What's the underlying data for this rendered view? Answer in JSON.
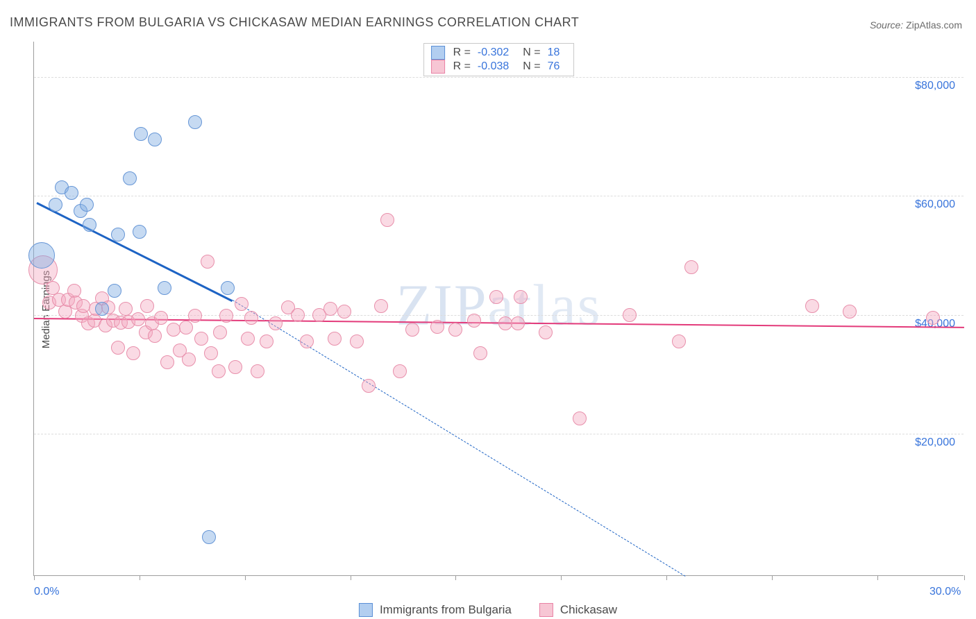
{
  "title": "IMMIGRANTS FROM BULGARIA VS CHICKASAW MEDIAN EARNINGS CORRELATION CHART",
  "source_prefix": "Source: ",
  "source_name": "ZipAtlas.com",
  "watermark": "ZIPatlas",
  "ylabel": "Median Earnings",
  "chart": {
    "type": "scatter",
    "background_color": "#ffffff",
    "grid_color": "#dcdcdc",
    "axis_color": "#9d9d9d",
    "label_color": "#3874db",
    "text_color": "#4a4a4a",
    "xlim": [
      0,
      30
    ],
    "ylim": [
      -4000,
      86000
    ],
    "x_ticks": [
      0,
      3.4,
      6.8,
      10.2,
      13.6,
      17.0,
      20.4,
      23.8,
      27.2,
      30.0
    ],
    "x_tick_labels_shown": {
      "0": "0.0%",
      "30": "30.0%"
    },
    "y_gridlines": [
      20000,
      40000,
      60000,
      80000
    ],
    "y_labels": {
      "20000": "$20,000",
      "40000": "$40,000",
      "60000": "$60,000",
      "80000": "$80,000"
    },
    "series": [
      {
        "name": "Immigrants from Bulgaria",
        "fill": "rgba(128, 172, 226, 0.45)",
        "stroke": "#6696d6",
        "swatch_fill": "#b2cef0",
        "swatch_stroke": "#5a8fd6",
        "R": "-0.302",
        "N": "18",
        "trend": {
          "color": "#1d63c4",
          "width": 3,
          "x1": 0.1,
          "y1": 59000,
          "x2": 6.4,
          "y2": 42500,
          "dash_to_x": 21.0,
          "dash_to_y": -4000
        },
        "points": [
          {
            "x": 0.25,
            "y": 50000,
            "r": 18
          },
          {
            "x": 0.7,
            "y": 58500,
            "r": 9
          },
          {
            "x": 0.9,
            "y": 61500,
            "r": 9
          },
          {
            "x": 1.2,
            "y": 60500,
            "r": 9
          },
          {
            "x": 1.5,
            "y": 57500,
            "r": 9
          },
          {
            "x": 1.7,
            "y": 58500,
            "r": 9
          },
          {
            "x": 1.8,
            "y": 55200,
            "r": 9
          },
          {
            "x": 2.2,
            "y": 41000,
            "r": 9
          },
          {
            "x": 2.6,
            "y": 44000,
            "r": 9
          },
          {
            "x": 2.7,
            "y": 53500,
            "r": 9
          },
          {
            "x": 3.1,
            "y": 63000,
            "r": 9
          },
          {
            "x": 3.4,
            "y": 54000,
            "r": 9
          },
          {
            "x": 3.45,
            "y": 70500,
            "r": 9
          },
          {
            "x": 3.9,
            "y": 69500,
            "r": 9
          },
          {
            "x": 4.2,
            "y": 44500,
            "r": 9
          },
          {
            "x": 5.2,
            "y": 72500,
            "r": 9
          },
          {
            "x": 5.65,
            "y": 2500,
            "r": 9
          },
          {
            "x": 6.25,
            "y": 44500,
            "r": 9
          }
        ]
      },
      {
        "name": "Chickasaw",
        "fill": "rgba(244, 166, 191, 0.42)",
        "stroke": "#e88fab",
        "swatch_fill": "#f7c6d4",
        "swatch_stroke": "#e982a5",
        "R": "-0.038",
        "N": "76",
        "trend": {
          "color": "#e33a7a",
          "width": 2.5,
          "x1": 0.0,
          "y1": 39500,
          "x2": 30.0,
          "y2": 38000
        },
        "points": [
          {
            "x": 0.3,
            "y": 47500,
            "r": 20
          },
          {
            "x": 0.5,
            "y": 42000,
            "r": 9
          },
          {
            "x": 0.6,
            "y": 44500,
            "r": 9
          },
          {
            "x": 0.8,
            "y": 42500,
            "r": 9
          },
          {
            "x": 1.0,
            "y": 40500,
            "r": 9
          },
          {
            "x": 1.1,
            "y": 42500,
            "r": 9
          },
          {
            "x": 1.3,
            "y": 44000,
            "r": 9
          },
          {
            "x": 1.35,
            "y": 42000,
            "r": 9
          },
          {
            "x": 1.55,
            "y": 39800,
            "r": 9
          },
          {
            "x": 1.6,
            "y": 41500,
            "r": 9
          },
          {
            "x": 1.75,
            "y": 38500,
            "r": 9
          },
          {
            "x": 1.95,
            "y": 39000,
            "r": 9
          },
          {
            "x": 2.0,
            "y": 41000,
            "r": 9
          },
          {
            "x": 2.2,
            "y": 42800,
            "r": 9
          },
          {
            "x": 2.3,
            "y": 38200,
            "r": 9
          },
          {
            "x": 2.4,
            "y": 41200,
            "r": 9
          },
          {
            "x": 2.55,
            "y": 39000,
            "r": 9
          },
          {
            "x": 2.7,
            "y": 34500,
            "r": 9
          },
          {
            "x": 2.8,
            "y": 38700,
            "r": 9
          },
          {
            "x": 2.95,
            "y": 41000,
            "r": 9
          },
          {
            "x": 3.05,
            "y": 38800,
            "r": 9
          },
          {
            "x": 3.2,
            "y": 33500,
            "r": 9
          },
          {
            "x": 3.35,
            "y": 39200,
            "r": 9
          },
          {
            "x": 3.6,
            "y": 37000,
            "r": 9
          },
          {
            "x": 3.65,
            "y": 41500,
            "r": 9
          },
          {
            "x": 3.8,
            "y": 38500,
            "r": 9
          },
          {
            "x": 3.9,
            "y": 36500,
            "r": 9
          },
          {
            "x": 4.1,
            "y": 39500,
            "r": 9
          },
          {
            "x": 4.3,
            "y": 32000,
            "r": 9
          },
          {
            "x": 4.5,
            "y": 37500,
            "r": 9
          },
          {
            "x": 4.7,
            "y": 34000,
            "r": 9
          },
          {
            "x": 4.9,
            "y": 37800,
            "r": 9
          },
          {
            "x": 5.0,
            "y": 32500,
            "r": 9
          },
          {
            "x": 5.2,
            "y": 39800,
            "r": 9
          },
          {
            "x": 5.4,
            "y": 36000,
            "r": 9
          },
          {
            "x": 5.6,
            "y": 49000,
            "r": 9
          },
          {
            "x": 5.7,
            "y": 33500,
            "r": 9
          },
          {
            "x": 5.95,
            "y": 30500,
            "r": 9
          },
          {
            "x": 6.0,
            "y": 37000,
            "r": 9
          },
          {
            "x": 6.2,
            "y": 39800,
            "r": 9
          },
          {
            "x": 6.5,
            "y": 31200,
            "r": 9
          },
          {
            "x": 6.7,
            "y": 41800,
            "r": 9
          },
          {
            "x": 6.9,
            "y": 36000,
            "r": 9
          },
          {
            "x": 7.0,
            "y": 39500,
            "r": 9
          },
          {
            "x": 7.2,
            "y": 30500,
            "r": 9
          },
          {
            "x": 7.5,
            "y": 35500,
            "r": 9
          },
          {
            "x": 7.8,
            "y": 38500,
            "r": 9
          },
          {
            "x": 8.2,
            "y": 41200,
            "r": 9
          },
          {
            "x": 8.5,
            "y": 40000,
            "r": 9
          },
          {
            "x": 8.8,
            "y": 35500,
            "r": 9
          },
          {
            "x": 9.2,
            "y": 40000,
            "r": 9
          },
          {
            "x": 9.55,
            "y": 41000,
            "r": 9
          },
          {
            "x": 9.7,
            "y": 36000,
            "r": 9
          },
          {
            "x": 10.0,
            "y": 40500,
            "r": 9
          },
          {
            "x": 10.4,
            "y": 35500,
            "r": 9
          },
          {
            "x": 10.8,
            "y": 28000,
            "r": 9
          },
          {
            "x": 11.2,
            "y": 41500,
            "r": 9
          },
          {
            "x": 11.4,
            "y": 56000,
            "r": 9
          },
          {
            "x": 11.8,
            "y": 30500,
            "r": 9
          },
          {
            "x": 12.2,
            "y": 37500,
            "r": 9
          },
          {
            "x": 13.0,
            "y": 38000,
            "r": 9
          },
          {
            "x": 13.6,
            "y": 37500,
            "r": 9
          },
          {
            "x": 14.2,
            "y": 39000,
            "r": 9
          },
          {
            "x": 14.4,
            "y": 33500,
            "r": 9
          },
          {
            "x": 14.9,
            "y": 43000,
            "r": 9
          },
          {
            "x": 15.2,
            "y": 38500,
            "r": 9
          },
          {
            "x": 15.6,
            "y": 38500,
            "r": 9
          },
          {
            "x": 15.7,
            "y": 43000,
            "r": 9
          },
          {
            "x": 16.5,
            "y": 37000,
            "r": 9
          },
          {
            "x": 17.6,
            "y": 22500,
            "r": 9
          },
          {
            "x": 19.2,
            "y": 40000,
            "r": 9
          },
          {
            "x": 20.8,
            "y": 35500,
            "r": 9
          },
          {
            "x": 21.2,
            "y": 48000,
            "r": 9
          },
          {
            "x": 25.1,
            "y": 41500,
            "r": 9
          },
          {
            "x": 26.3,
            "y": 40500,
            "r": 9
          },
          {
            "x": 29.0,
            "y": 39500,
            "r": 9
          }
        ]
      }
    ]
  }
}
